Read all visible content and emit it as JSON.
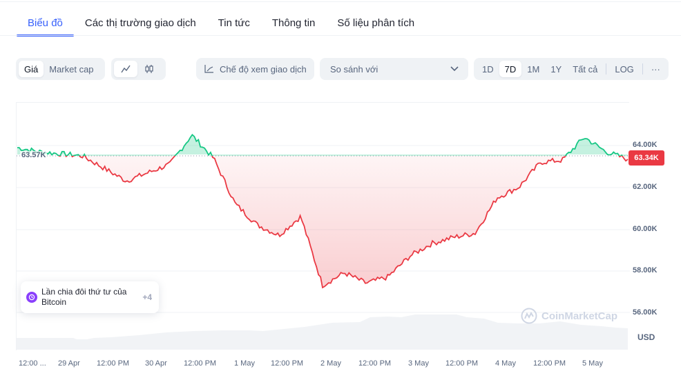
{
  "tabs": [
    {
      "label": "Biểu đồ",
      "active": true
    },
    {
      "label": "Các thị trường giao dịch",
      "active": false
    },
    {
      "label": "Tin tức",
      "active": false
    },
    {
      "label": "Thông tin",
      "active": false
    },
    {
      "label": "Số liệu phân tích",
      "active": false
    }
  ],
  "toolbar": {
    "metric_toggle": [
      {
        "label": "Giá",
        "active": true
      },
      {
        "label": "Market cap",
        "active": false
      }
    ],
    "chart_type_toggle": [
      {
        "icon": "line-chart-icon",
        "active": true
      },
      {
        "icon": "candlestick-icon",
        "active": false
      }
    ],
    "trading_view_label": "Chế độ xem giao dịch",
    "compare_label": "So sánh với",
    "ranges": [
      {
        "label": "1D",
        "active": false
      },
      {
        "label": "7D",
        "active": true
      },
      {
        "label": "1M",
        "active": false
      },
      {
        "label": "1Y",
        "active": false
      },
      {
        "label": "Tất cả",
        "active": false
      }
    ],
    "log_label": "LOG",
    "more_label": "···"
  },
  "chart": {
    "start_price_label": "63.57K",
    "current_price_label": "63.34K",
    "currency": "USD",
    "watermark": "CoinMarketCap",
    "event": {
      "label": "Lần chia đôi thứ tư của Bitcoin",
      "more": "+4"
    },
    "colors": {
      "up": "#16c784",
      "down": "#ea3943",
      "accent": "#3861fb"
    }
  },
  "chart_data": {
    "type": "line",
    "title": "Bitcoin price (7D)",
    "xlabel": "",
    "ylabel": "USD",
    "x_ticks": [
      "12:00 ...",
      "29 Apr",
      "12:00 PM",
      "30 Apr",
      "12:00 PM",
      "1 May",
      "12:00 PM",
      "2 May",
      "12:00 PM",
      "3 May",
      "12:00 PM",
      "4 May",
      "12:00 PM",
      "5 May"
    ],
    "y_ticks": [
      "56.00K",
      "58.00K",
      "60.00K",
      "62.00K",
      "64.00K"
    ],
    "ylim": [
      55000,
      65200
    ],
    "baseline": 63570,
    "last_value": 63340,
    "grid": true,
    "series": [
      {
        "name": "Price",
        "x": [
          "28 Apr 12:00",
          "28 Apr 18:00",
          "29 Apr 00:00",
          "29 Apr 06:00",
          "29 Apr 12:00",
          "29 Apr 18:00",
          "30 Apr 00:00",
          "30 Apr 06:00",
          "30 Apr 12:00",
          "30 Apr 18:00",
          "1 May 00:00",
          "1 May 06:00",
          "1 May 12:00",
          "1 May 18:00",
          "2 May 00:00",
          "2 May 06:00",
          "2 May 12:00",
          "2 May 18:00",
          "3 May 00:00",
          "3 May 06:00",
          "3 May 12:00",
          "3 May 18:00",
          "4 May 00:00",
          "4 May 06:00",
          "4 May 12:00",
          "4 May 18:00",
          "5 May 00:00",
          "5 May 06:00",
          "5 May 12:00"
        ],
        "values": [
          63900,
          63700,
          63600,
          63500,
          62900,
          62300,
          62700,
          63100,
          64500,
          63400,
          61200,
          60200,
          59700,
          60600,
          57300,
          57900,
          57400,
          57700,
          58700,
          59300,
          59600,
          59800,
          61500,
          62000,
          63200,
          63300,
          64400,
          63700,
          63340
        ]
      }
    ]
  }
}
